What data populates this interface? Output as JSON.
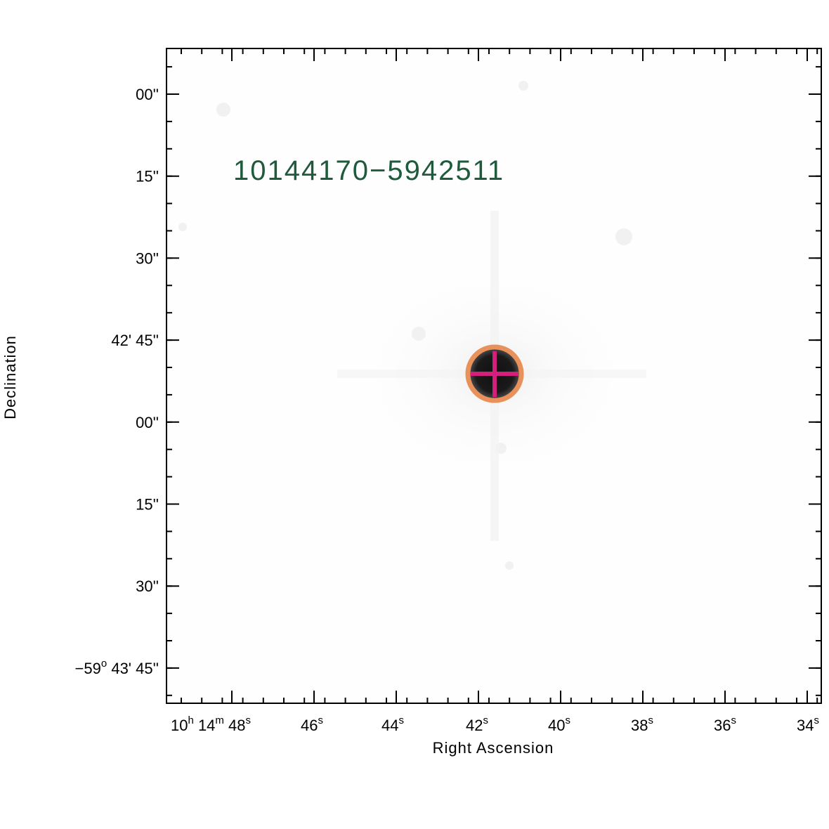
{
  "chart_data": {
    "type": "image",
    "title": "10144170−5942511",
    "xlabel": "Right Ascension",
    "ylabel": "Declination",
    "colors": {
      "title": "#1f5a3c",
      "marker_circle": "#e8915a",
      "marker_cross": "#d4207c",
      "source": "#000000"
    },
    "y_ticks": [
      {
        "value": "00''",
        "prefix": ""
      },
      {
        "value": "15''",
        "prefix": ""
      },
      {
        "value": "30''",
        "prefix": ""
      },
      {
        "value": "42' 45''",
        "prefix": ""
      },
      {
        "value": "00''",
        "prefix": ""
      },
      {
        "value": "15''",
        "prefix": ""
      },
      {
        "value": "30''",
        "prefix": ""
      },
      {
        "value": "43' 45''",
        "prefix": "−59",
        "prefix_sup": "o"
      }
    ],
    "x_ticks": [
      {
        "parts": [
          [
            "10",
            "h"
          ],
          [
            "14",
            "m"
          ],
          [
            "48",
            "s"
          ]
        ]
      },
      {
        "parts": [
          [
            "46",
            "s"
          ]
        ]
      },
      {
        "parts": [
          [
            "44",
            "s"
          ]
        ]
      },
      {
        "parts": [
          [
            "42",
            "s"
          ]
        ]
      },
      {
        "parts": [
          [
            "40",
            "s"
          ]
        ]
      },
      {
        "parts": [
          [
            "38",
            "s"
          ]
        ]
      },
      {
        "parts": [
          [
            "36",
            "s"
          ]
        ]
      },
      {
        "parts": [
          [
            "34",
            "s"
          ]
        ]
      }
    ]
  }
}
